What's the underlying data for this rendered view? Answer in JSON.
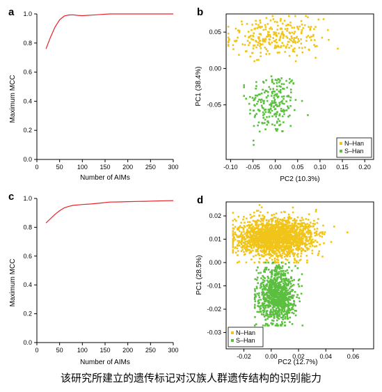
{
  "caption": "该研究所建立的遗传标记对汉族人群遗传结构的识别能力",
  "colors": {
    "line": "#e8202a",
    "n_han": "#f0c419",
    "s_han": "#5bbf3f",
    "axis": "#000000"
  },
  "chart_data": [
    {
      "panel": "a",
      "type": "line",
      "xlabel": "Number of AIMs",
      "ylabel": "Maximum MCC",
      "xlim": [
        0,
        300
      ],
      "ylim": [
        0,
        1.0
      ],
      "xticks": [
        0,
        50,
        100,
        150,
        200,
        250,
        300
      ],
      "yticks": [
        0.0,
        0.2,
        0.4,
        0.6,
        0.8,
        1.0
      ],
      "x": [
        20,
        25,
        30,
        40,
        50,
        60,
        70,
        80,
        90,
        100,
        110,
        120,
        140,
        160,
        180,
        200,
        220,
        240,
        260,
        280,
        300
      ],
      "y": [
        0.76,
        0.8,
        0.84,
        0.91,
        0.96,
        0.985,
        0.993,
        0.994,
        0.99,
        0.988,
        0.99,
        0.992,
        0.996,
        1.0,
        1.0,
        1.0,
        1.0,
        1.0,
        1.0,
        1.0,
        1.0
      ],
      "grid": false
    },
    {
      "panel": "b",
      "type": "scatter",
      "xlabel": "PC2 (10.3%)",
      "ylabel": "PC1 (38.4%)",
      "xlim": [
        -0.11,
        0.22
      ],
      "ylim": [
        -0.125,
        0.075
      ],
      "xticks": [
        -0.1,
        -0.05,
        0.0,
        0.05,
        0.1,
        0.15,
        0.2
      ],
      "xticklabels": [
        "-0.10",
        "-0.05",
        "0.00",
        "0.05",
        "0.10",
        "0.15",
        "0.20"
      ],
      "yticks": [
        0.05,
        0.0,
        -0.05
      ],
      "yticklabels": [
        "0.05",
        "0.00",
        "-0.05"
      ],
      "legend": {
        "position": "bottom-right",
        "entries": [
          "N–Han",
          "S–Han"
        ]
      },
      "series": [
        {
          "name": "N–Han",
          "n": 280,
          "center": [
            0.0,
            0.042
          ],
          "spread": [
            0.05,
            0.013
          ],
          "x_range": [
            -0.105,
            0.215
          ],
          "y_range": [
            0.01,
            0.072
          ]
        },
        {
          "name": "S–Han",
          "n": 220,
          "center": [
            -0.005,
            -0.048
          ],
          "spread": [
            0.028,
            0.022
          ],
          "x_range": [
            -0.07,
            0.12
          ],
          "y_range": [
            -0.105,
            -0.003
          ]
        }
      ],
      "grid": false
    },
    {
      "panel": "c",
      "type": "line",
      "xlabel": "Number of AIMs",
      "ylabel": "Maximum MCC",
      "xlim": [
        0,
        300
      ],
      "ylim": [
        0,
        1.0
      ],
      "xticks": [
        0,
        50,
        100,
        150,
        200,
        250,
        300
      ],
      "yticks": [
        0.0,
        0.2,
        0.4,
        0.6,
        0.8,
        1.0
      ],
      "x": [
        20,
        30,
        40,
        50,
        60,
        70,
        80,
        90,
        100,
        120,
        140,
        160,
        180,
        200,
        220,
        240,
        260,
        280,
        300
      ],
      "y": [
        0.83,
        0.86,
        0.89,
        0.915,
        0.935,
        0.945,
        0.952,
        0.955,
        0.958,
        0.962,
        0.968,
        0.975,
        0.976,
        0.978,
        0.979,
        0.98,
        0.982,
        0.984,
        0.985
      ],
      "grid": false
    },
    {
      "panel": "d",
      "type": "scatter",
      "xlabel": "PC2 (12.7%)",
      "ylabel": "PC1 (28.5%)",
      "xlim": [
        -0.033,
        0.075
      ],
      "ylim": [
        -0.037,
        0.026
      ],
      "xticks": [
        -0.02,
        0.0,
        0.02,
        0.04,
        0.06
      ],
      "xticklabels": [
        "-0.02",
        "0.00",
        "0.02",
        "0.04",
        "0.06"
      ],
      "yticks": [
        0.02,
        0.01,
        0.0,
        -0.01,
        -0.02,
        -0.03
      ],
      "yticklabels": [
        "0.02",
        "0.01",
        "0.00",
        "-0.01",
        "-0.02",
        "-0.03"
      ],
      "legend": {
        "position": "bottom-left",
        "entries": [
          "N–Han",
          "S–Han"
        ]
      },
      "series": [
        {
          "name": "N–Han",
          "n": 1800,
          "center": [
            0.003,
            0.011
          ],
          "spread": [
            0.014,
            0.0042
          ],
          "x_range": [
            -0.028,
            0.072
          ],
          "y_range": [
            0.0,
            0.025
          ]
        },
        {
          "name": "S–Han",
          "n": 900,
          "center": [
            0.004,
            -0.014
          ],
          "spread": [
            0.007,
            0.006
          ],
          "x_range": [
            -0.012,
            0.045
          ],
          "y_range": [
            -0.027,
            0.0
          ]
        }
      ],
      "grid": false
    }
  ]
}
